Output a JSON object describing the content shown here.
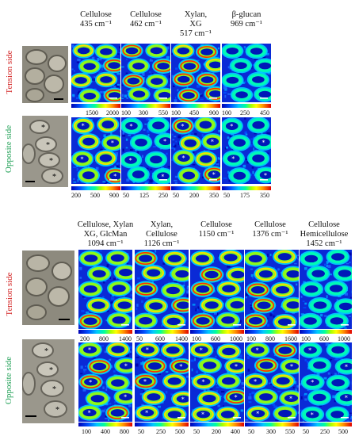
{
  "top": {
    "headers": [
      {
        "l1": "",
        "l2": "Cellulose",
        "l3": "435 cm⁻¹"
      },
      {
        "l1": "",
        "l2": "Cellulose",
        "l3": "462 cm⁻¹"
      },
      {
        "l1": "Xylan,",
        "l2": "XG",
        "l3": "517 cm⁻¹"
      },
      {
        "l1": "",
        "l2": "β-glucan",
        "l3": "969 cm⁻¹"
      }
    ],
    "tension_label": "Tension side",
    "opposite_label": "Opposite side",
    "tension_ticks": [
      [
        "1500",
        "2000"
      ],
      [
        "100",
        "300",
        "550"
      ],
      [
        "100",
        "450",
        "900"
      ],
      [
        "100",
        "250",
        "450"
      ]
    ],
    "opposite_ticks": [
      [
        "200",
        "500",
        "900"
      ],
      [
        "50",
        "125",
        "250"
      ],
      [
        "50",
        "200",
        "350"
      ],
      [
        "50",
        "175",
        "350"
      ]
    ]
  },
  "bottom": {
    "headers": [
      {
        "l1": "Cellulose, Xylan",
        "l2": "XG, GlcMan",
        "l3": "1094 cm⁻¹"
      },
      {
        "l1": "Xylan,",
        "l2": "Cellulose",
        "l3": "1126 cm⁻¹"
      },
      {
        "l1": "",
        "l2": "Cellulose",
        "l3": "1150 cm⁻¹"
      },
      {
        "l1": "",
        "l2": "Cellulose",
        "l3": "1376 cm⁻¹"
      },
      {
        "l1": "Cellulose",
        "l2": "Hemicellulose",
        "l3": "1452 cm⁻¹"
      }
    ],
    "tension_label": "Tension side",
    "opposite_label": "Opposite side",
    "tension_ticks": [
      [
        "200",
        "800",
        "1400"
      ],
      [
        "50",
        "600",
        "1400"
      ],
      [
        "100",
        "600",
        "1000"
      ],
      [
        "100",
        "800",
        "1600"
      ],
      [
        "100",
        "600",
        "1000"
      ]
    ],
    "opposite_ticks": [
      [
        "100",
        "400",
        "800"
      ],
      [
        "50",
        "250",
        "500"
      ],
      [
        "50",
        "200",
        "400"
      ],
      [
        "50",
        "300",
        "550"
      ],
      [
        "50",
        "250",
        "500"
      ]
    ]
  }
}
